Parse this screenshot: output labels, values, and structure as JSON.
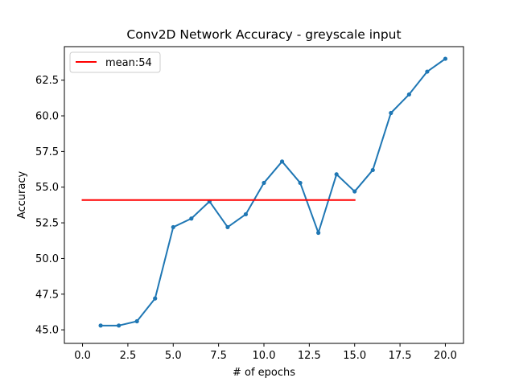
{
  "chart_data": {
    "type": "line",
    "title": "Conv2D Network Accuracy - greyscale input",
    "xlabel": "# of epochs",
    "ylabel": "Accuracy",
    "xlim": [
      -1.0,
      21.0
    ],
    "ylim": [
      44.05,
      64.85
    ],
    "xticks": [
      0.0,
      2.5,
      5.0,
      7.5,
      10.0,
      12.5,
      15.0,
      17.5,
      20.0
    ],
    "xtick_labels": [
      "0.0",
      "2.5",
      "5.0",
      "7.5",
      "10.0",
      "12.5",
      "15.0",
      "17.5",
      "20.0"
    ],
    "yticks": [
      45.0,
      47.5,
      50.0,
      52.5,
      55.0,
      57.5,
      60.0,
      62.5
    ],
    "ytick_labels": [
      "45.0",
      "47.5",
      "50.0",
      "52.5",
      "55.0",
      "57.5",
      "60.0",
      "62.5"
    ],
    "grid": false,
    "legend_position": "top-left",
    "series": [
      {
        "color": "#1f77b4",
        "marker": "dot",
        "x": [
          1,
          2,
          3,
          4,
          5,
          6,
          7,
          8,
          9,
          10,
          11,
          12,
          13,
          14,
          15,
          16,
          17,
          18,
          19,
          20
        ],
        "y": [
          45.3,
          45.3,
          45.6,
          47.2,
          52.2,
          52.8,
          54.0,
          52.2,
          53.1,
          55.3,
          56.8,
          55.3,
          51.8,
          55.9,
          54.7,
          56.2,
          60.2,
          61.5,
          63.1,
          64.0
        ]
      },
      {
        "name": "mean:54",
        "color": "#ff0000",
        "x": [
          0,
          15
        ],
        "y": [
          54.1,
          54.1
        ]
      }
    ]
  }
}
